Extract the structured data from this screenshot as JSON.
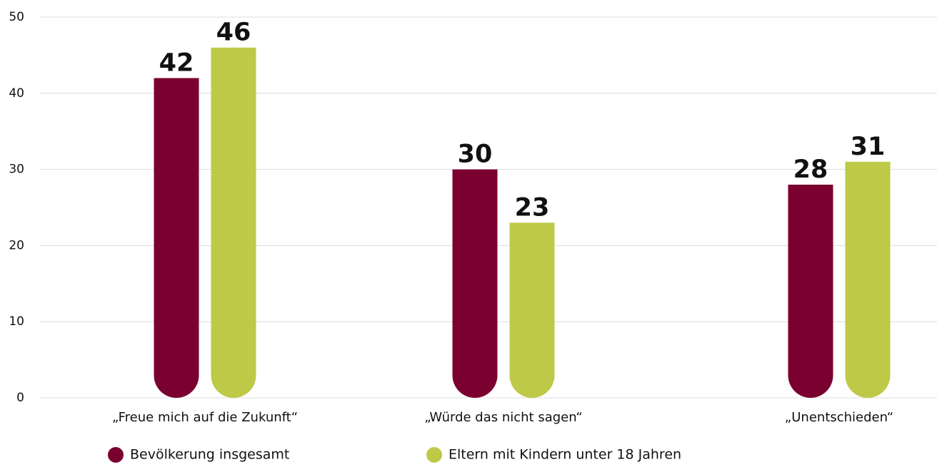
{
  "chart_data": {
    "type": "bar",
    "categories": [
      "„Freue mich auf die Zukunft“",
      "„Würde das nicht sagen“",
      "„Unentschieden“"
    ],
    "series": [
      {
        "name": "Bevölkerung insgesamt",
        "color": "#7a0030",
        "values": [
          42,
          30,
          28
        ]
      },
      {
        "name": "Eltern mit Kindern unter 18 Jahren",
        "color": "#bec948",
        "values": [
          46,
          23,
          31
        ]
      }
    ],
    "ylim": [
      0,
      50
    ],
    "yticks": [
      0,
      10,
      20,
      30,
      40,
      50
    ],
    "grid": true,
    "legend": "bottom"
  }
}
